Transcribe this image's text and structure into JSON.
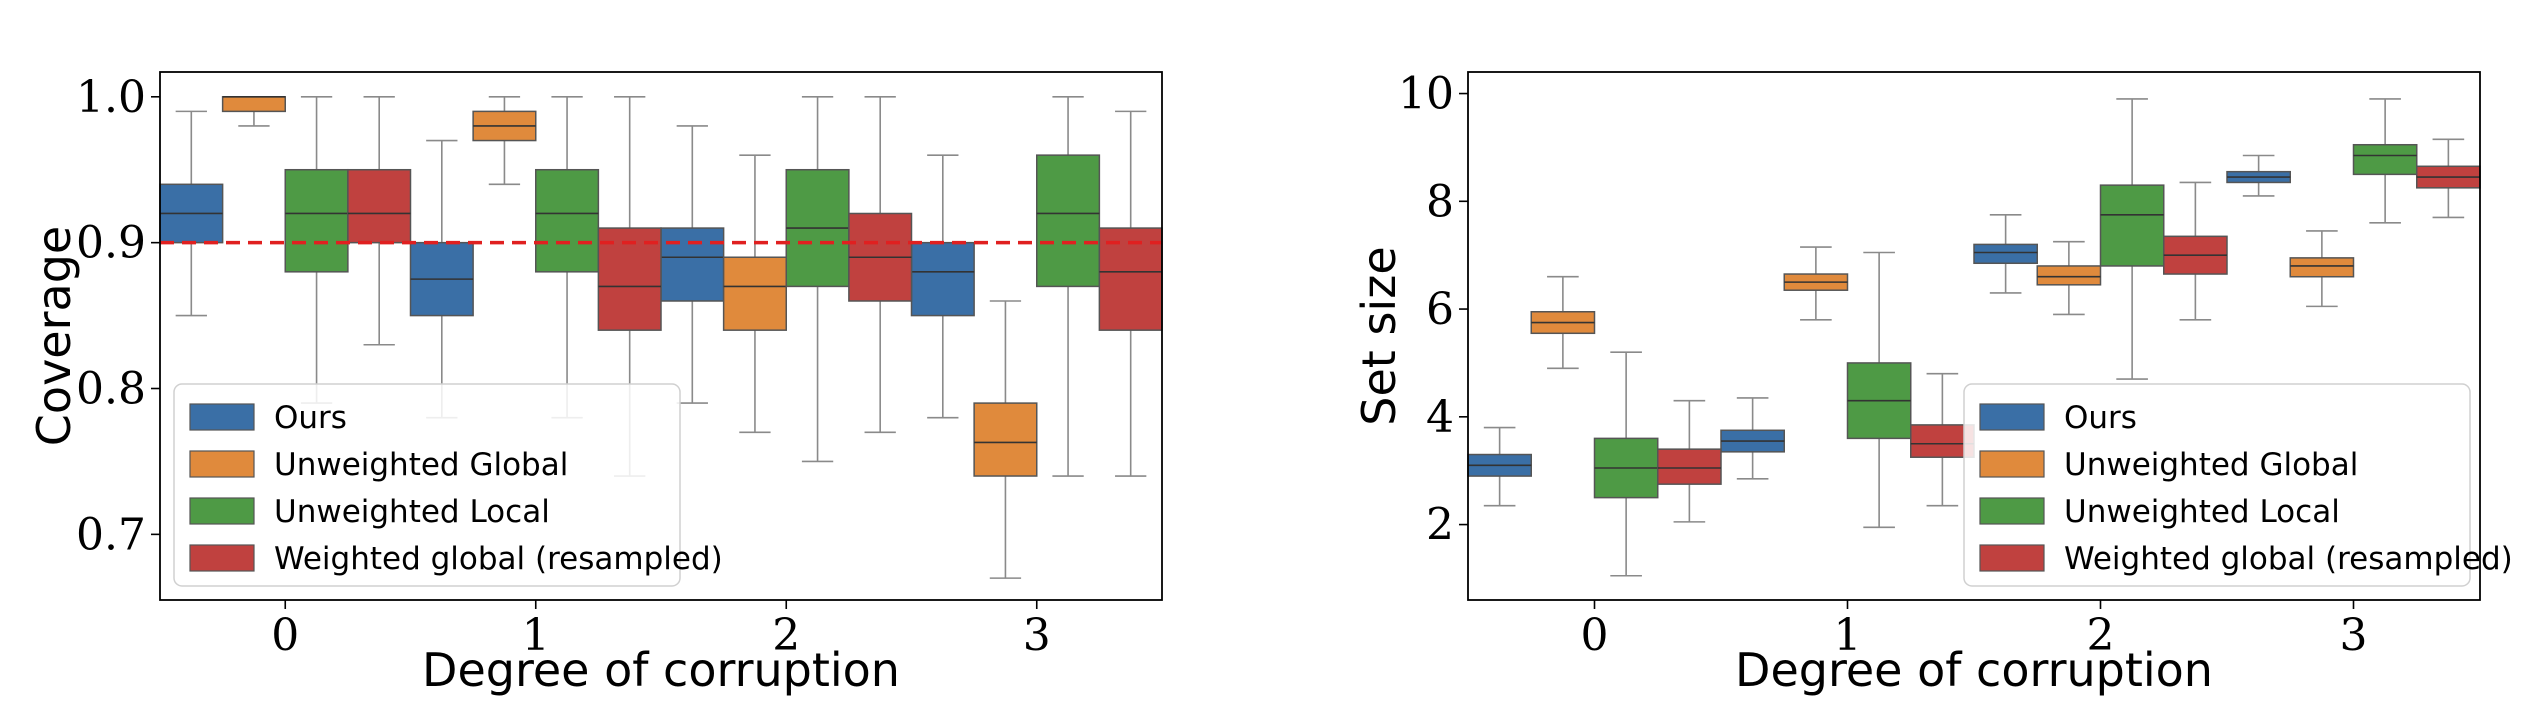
{
  "colors": {
    "Ours": "#3a6fa6",
    "Unweighted Global": "#e08a3c",
    "Unweighted Local": "#4e9a45",
    "Weighted global (resampled)": "#c0413f",
    "whisker": "#8a8a8a",
    "reference_line": "#e02020"
  },
  "chart_data": [
    {
      "type": "box",
      "xlabel": "Degree of corruption",
      "ylabel": "Coverage",
      "categories": [
        "0",
        "1",
        "2",
        "3"
      ],
      "ylim": [
        0.655,
        1.017
      ],
      "yticks": [
        0.7,
        0.8,
        0.9,
        1.0
      ],
      "ytick_labels": [
        "0.7",
        "0.8",
        "0.9",
        "1.0"
      ],
      "reference_line": {
        "y": 0.9,
        "style": "dashed"
      },
      "legend": {
        "position": "lower-left",
        "entries": [
          "Ours",
          "Unweighted Global",
          "Unweighted Local",
          "Weighted global (resampled)"
        ]
      },
      "series": [
        {
          "name": "Ours",
          "boxes": [
            {
              "whislo": 0.85,
              "q1": 0.9,
              "med": 0.92,
              "q3": 0.94,
              "whishi": 0.99
            },
            {
              "whislo": 0.78,
              "q1": 0.85,
              "med": 0.875,
              "q3": 0.9,
              "whishi": 0.97
            },
            {
              "whislo": 0.79,
              "q1": 0.86,
              "med": 0.89,
              "q3": 0.91,
              "whishi": 0.98
            },
            {
              "whislo": 0.78,
              "q1": 0.85,
              "med": 0.88,
              "q3": 0.9,
              "whishi": 0.96
            }
          ]
        },
        {
          "name": "Unweighted Global",
          "boxes": [
            {
              "whislo": 0.98,
              "q1": 0.99,
              "med": 1.0,
              "q3": 1.0,
              "whishi": 1.0
            },
            {
              "whislo": 0.94,
              "q1": 0.97,
              "med": 0.98,
              "q3": 0.99,
              "whishi": 1.0
            },
            {
              "whislo": 0.77,
              "q1": 0.84,
              "med": 0.87,
              "q3": 0.89,
              "whishi": 0.96
            },
            {
              "whislo": 0.67,
              "q1": 0.74,
              "med": 0.763,
              "q3": 0.79,
              "whishi": 0.86
            }
          ]
        },
        {
          "name": "Unweighted Local",
          "boxes": [
            {
              "whislo": 0.79,
              "q1": 0.88,
              "med": 0.92,
              "q3": 0.95,
              "whishi": 1.0
            },
            {
              "whislo": 0.78,
              "q1": 0.88,
              "med": 0.92,
              "q3": 0.95,
              "whishi": 1.0
            },
            {
              "whislo": 0.75,
              "q1": 0.87,
              "med": 0.91,
              "q3": 0.95,
              "whishi": 1.0
            },
            {
              "whislo": 0.74,
              "q1": 0.87,
              "med": 0.92,
              "q3": 0.96,
              "whishi": 1.0
            }
          ]
        },
        {
          "name": "Weighted global (resampled)",
          "boxes": [
            {
              "whislo": 0.83,
              "q1": 0.9,
              "med": 0.92,
              "q3": 0.95,
              "whishi": 1.0
            },
            {
              "whislo": 0.74,
              "q1": 0.84,
              "med": 0.87,
              "q3": 0.91,
              "whishi": 1.0
            },
            {
              "whislo": 0.77,
              "q1": 0.86,
              "med": 0.89,
              "q3": 0.92,
              "whishi": 1.0
            },
            {
              "whislo": 0.74,
              "q1": 0.84,
              "med": 0.88,
              "q3": 0.91,
              "whishi": 0.99
            }
          ]
        }
      ]
    },
    {
      "type": "box",
      "xlabel": "Degree of corruption",
      "ylabel": "Set size",
      "categories": [
        "0",
        "1",
        "2",
        "3"
      ],
      "ylim": [
        0.6,
        10.4
      ],
      "yticks": [
        2,
        4,
        6,
        8,
        10
      ],
      "ytick_labels": [
        "2",
        "4",
        "6",
        "8",
        "10"
      ],
      "legend": {
        "position": "lower-right",
        "entries": [
          "Ours",
          "Unweighted Global",
          "Unweighted Local",
          "Weighted global (resampled)"
        ]
      },
      "series": [
        {
          "name": "Ours",
          "boxes": [
            {
              "whislo": 2.35,
              "q1": 2.9,
              "med": 3.1,
              "q3": 3.3,
              "whishi": 3.8
            },
            {
              "whislo": 2.85,
              "q1": 3.35,
              "med": 3.55,
              "q3": 3.75,
              "whishi": 4.35
            },
            {
              "whislo": 6.3,
              "q1": 6.85,
              "med": 7.05,
              "q3": 7.2,
              "whishi": 7.75
            },
            {
              "whislo": 8.1,
              "q1": 8.35,
              "med": 8.45,
              "q3": 8.55,
              "whishi": 8.85
            }
          ]
        },
        {
          "name": "Unweighted Global",
          "boxes": [
            {
              "whislo": 4.9,
              "q1": 5.55,
              "med": 5.75,
              "q3": 5.95,
              "whishi": 6.6
            },
            {
              "whislo": 5.8,
              "q1": 6.35,
              "med": 6.5,
              "q3": 6.65,
              "whishi": 7.15
            },
            {
              "whislo": 5.9,
              "q1": 6.45,
              "med": 6.6,
              "q3": 6.8,
              "whishi": 7.25
            },
            {
              "whislo": 6.05,
              "q1": 6.6,
              "med": 6.8,
              "q3": 6.95,
              "whishi": 7.45
            }
          ]
        },
        {
          "name": "Unweighted Local",
          "boxes": [
            {
              "whislo": 1.05,
              "q1": 2.5,
              "med": 3.05,
              "q3": 3.6,
              "whishi": 5.2
            },
            {
              "whislo": 1.95,
              "q1": 3.6,
              "med": 4.3,
              "q3": 5.0,
              "whishi": 7.05
            },
            {
              "whislo": 4.7,
              "q1": 6.8,
              "med": 7.75,
              "q3": 8.3,
              "whishi": 9.9
            },
            {
              "whislo": 7.6,
              "q1": 8.5,
              "med": 8.85,
              "q3": 9.05,
              "whishi": 9.9
            }
          ]
        },
        {
          "name": "Weighted global (resampled)",
          "boxes": [
            {
              "whislo": 2.05,
              "q1": 2.75,
              "med": 3.05,
              "q3": 3.4,
              "whishi": 4.3
            },
            {
              "whislo": 2.35,
              "q1": 3.25,
              "med": 3.5,
              "q3": 3.85,
              "whishi": 4.8
            },
            {
              "whislo": 5.8,
              "q1": 6.65,
              "med": 7.0,
              "q3": 7.35,
              "whishi": 8.35
            },
            {
              "whislo": 7.7,
              "q1": 8.25,
              "med": 8.45,
              "q3": 8.65,
              "whishi": 9.15
            }
          ]
        }
      ]
    }
  ]
}
